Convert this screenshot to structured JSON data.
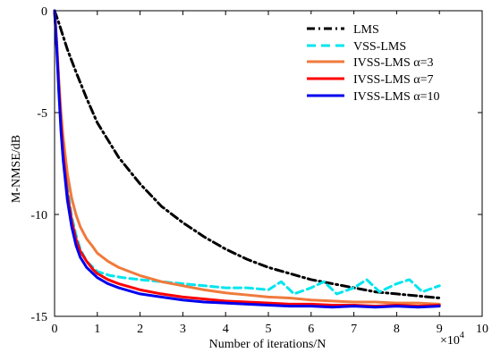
{
  "chart_data": {
    "type": "line",
    "title": "",
    "xlabel": "Number of iterations/N",
    "ylabel": "M-NMSE/dB",
    "x_multiplier_label": "×10",
    "x_multiplier_exponent": "4",
    "xlim": [
      0,
      10
    ],
    "ylim": [
      -15,
      0
    ],
    "xticks": [
      "0",
      "1",
      "2",
      "3",
      "4",
      "5",
      "6",
      "7",
      "8",
      "9",
      "10"
    ],
    "yticks": [
      "0",
      "-5",
      "-10",
      "-15"
    ],
    "grid": false,
    "legend_position": "top-right",
    "legend": {
      "lms": "LMS",
      "vss": "VSS-LMS",
      "iv3": "IVSS-LMS α=3",
      "iv7": "IVSS-LMS α=7",
      "iv10": "IVSS-LMS α=10"
    },
    "series": [
      {
        "name": "LMS",
        "color": "#000000",
        "style": "dash-dot",
        "x": [
          0,
          0.1,
          0.3,
          0.5,
          0.75,
          1.0,
          1.5,
          2.0,
          2.5,
          3.0,
          3.5,
          4.0,
          4.5,
          5.0,
          5.5,
          6.0,
          6.5,
          7.0,
          7.5,
          8.0,
          8.5,
          9.0
        ],
        "y": [
          0,
          -0.6,
          -1.9,
          -3.0,
          -4.3,
          -5.5,
          -7.2,
          -8.5,
          -9.6,
          -10.4,
          -11.1,
          -11.7,
          -12.2,
          -12.6,
          -12.9,
          -13.2,
          -13.4,
          -13.6,
          -13.8,
          -13.9,
          -14.0,
          -14.1
        ]
      },
      {
        "name": "VSS-LMS",
        "color": "#00e5ee",
        "style": "dashed",
        "x": [
          0,
          0.05,
          0.1,
          0.15,
          0.2,
          0.3,
          0.4,
          0.5,
          0.6,
          0.75,
          0.9,
          1.0,
          1.3,
          1.6,
          2.0,
          2.5,
          3.0,
          3.5,
          4.0,
          4.5,
          5.0,
          5.3,
          5.6,
          6.0,
          6.3,
          6.6,
          7.0,
          7.3,
          7.6,
          8.0,
          8.3,
          8.6,
          9.0
        ],
        "y": [
          0,
          -1.6,
          -3.5,
          -5.1,
          -6.6,
          -8.7,
          -10.1,
          -11.0,
          -11.7,
          -12.3,
          -12.6,
          -12.8,
          -13.0,
          -13.1,
          -13.2,
          -13.3,
          -13.4,
          -13.5,
          -13.6,
          -13.6,
          -13.7,
          -13.3,
          -13.9,
          -13.6,
          -13.3,
          -13.9,
          -13.6,
          -13.2,
          -13.8,
          -13.4,
          -13.2,
          -13.8,
          -13.5
        ]
      },
      {
        "name": "IVSS-LMS α=3",
        "color": "#f07a3c",
        "style": "solid",
        "x": [
          0,
          0.05,
          0.1,
          0.15,
          0.2,
          0.3,
          0.4,
          0.5,
          0.6,
          0.75,
          0.9,
          1.0,
          1.25,
          1.5,
          1.75,
          2.0,
          2.5,
          3.0,
          3.5,
          4.0,
          4.5,
          5.0,
          5.5,
          6.0,
          6.5,
          7.0,
          7.5,
          8.0,
          8.5,
          9.0
        ],
        "y": [
          0,
          -1.5,
          -3.4,
          -5.0,
          -6.2,
          -8.0,
          -9.2,
          -10.0,
          -10.6,
          -11.2,
          -11.6,
          -11.9,
          -12.3,
          -12.6,
          -12.8,
          -13.0,
          -13.3,
          -13.5,
          -13.7,
          -13.85,
          -13.95,
          -14.05,
          -14.1,
          -14.2,
          -14.25,
          -14.3,
          -14.3,
          -14.35,
          -14.35,
          -14.4
        ]
      },
      {
        "name": "IVSS-LMS α=7",
        "color": "#ff0000",
        "style": "solid",
        "x": [
          0,
          0.05,
          0.1,
          0.15,
          0.2,
          0.3,
          0.4,
          0.5,
          0.6,
          0.75,
          0.9,
          1.0,
          1.25,
          1.5,
          2.0,
          2.5,
          3.0,
          3.5,
          4.0,
          4.5,
          5.0,
          5.5,
          6.0,
          6.5,
          7.0,
          7.5,
          8.0,
          8.5,
          9.0
        ],
        "y": [
          0,
          -1.7,
          -3.8,
          -5.6,
          -7.0,
          -9.0,
          -10.3,
          -11.2,
          -11.8,
          -12.3,
          -12.7,
          -12.9,
          -13.2,
          -13.4,
          -13.7,
          -13.9,
          -14.05,
          -14.15,
          -14.25,
          -14.3,
          -14.35,
          -14.4,
          -14.4,
          -14.45,
          -14.45,
          -14.5,
          -14.45,
          -14.5,
          -14.45
        ]
      },
      {
        "name": "IVSS-LMS α=10",
        "color": "#0000ee",
        "style": "solid",
        "x": [
          0,
          0.05,
          0.1,
          0.15,
          0.2,
          0.3,
          0.4,
          0.5,
          0.6,
          0.75,
          0.9,
          1.0,
          1.25,
          1.5,
          2.0,
          2.5,
          3.0,
          3.5,
          4.0,
          4.5,
          5.0,
          5.5,
          6.0,
          6.5,
          7.0,
          7.5,
          8.0,
          8.5,
          9.0
        ],
        "y": [
          0,
          -1.8,
          -4.0,
          -5.9,
          -7.3,
          -9.3,
          -10.6,
          -11.5,
          -12.1,
          -12.6,
          -12.9,
          -13.1,
          -13.4,
          -13.6,
          -13.9,
          -14.05,
          -14.2,
          -14.3,
          -14.35,
          -14.4,
          -14.45,
          -14.5,
          -14.5,
          -14.55,
          -14.5,
          -14.55,
          -14.5,
          -14.55,
          -14.5
        ]
      }
    ]
  }
}
